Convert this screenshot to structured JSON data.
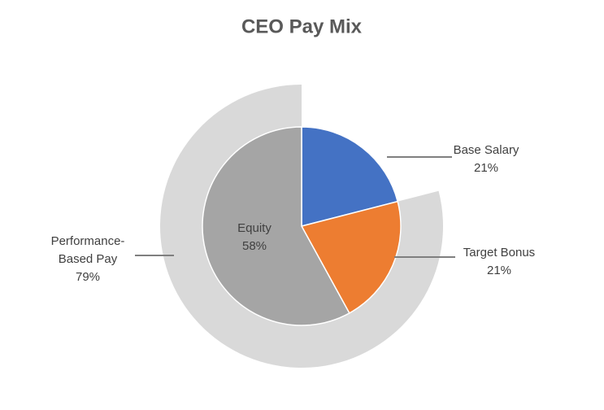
{
  "chart_data": {
    "type": "pie",
    "title": "CEO Pay Mix",
    "inner": {
      "labels": [
        "Base Salary",
        "Target Bonus",
        "Equity"
      ],
      "values": [
        21,
        21,
        58
      ],
      "value_labels": [
        "21%",
        "21%",
        "58%"
      ],
      "colors": [
        "#4472c4",
        "#ed7d31",
        "#a5a5a5"
      ]
    },
    "outer": {
      "labels": [
        "Performance-Based Pay"
      ],
      "values": [
        79
      ],
      "value_labels": [
        "79%"
      ],
      "color": "#d9d9d9"
    }
  }
}
